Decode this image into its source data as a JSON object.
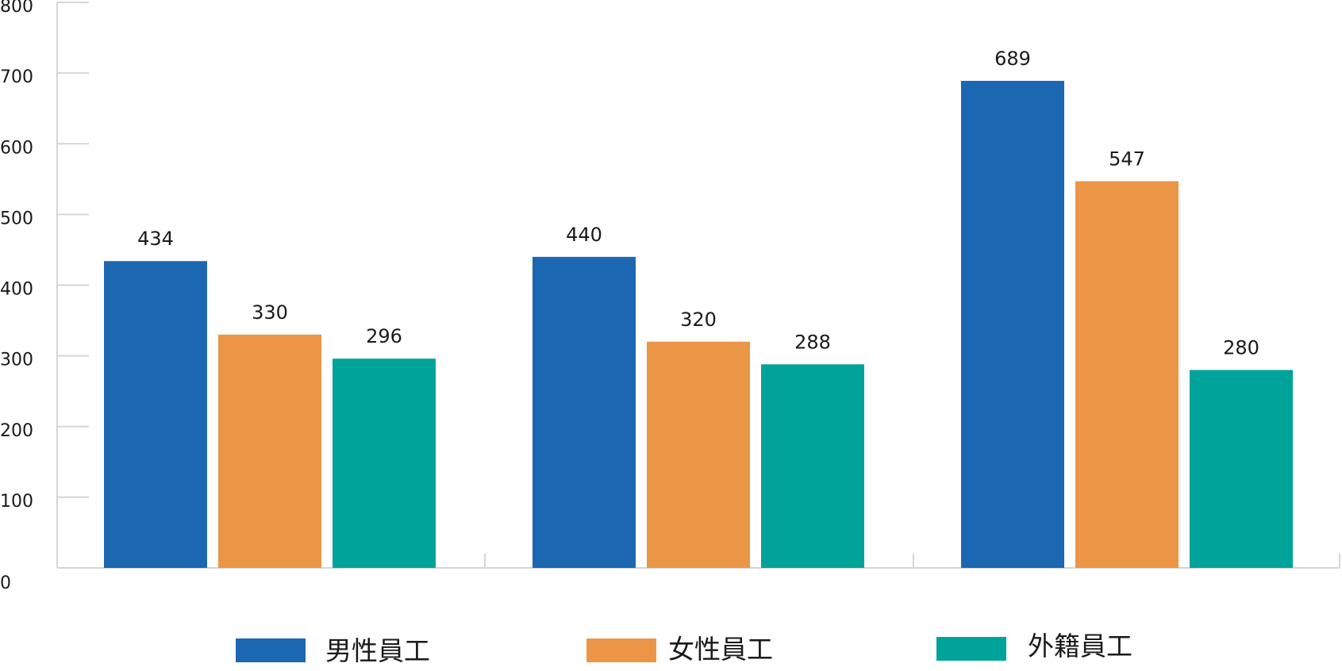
{
  "chart_data": {
    "type": "bar",
    "categories": [
      "",
      "",
      ""
    ],
    "series": [
      {
        "name": "男性員工",
        "color": "#1c67b2",
        "values": [
          434,
          440,
          689
        ]
      },
      {
        "name": "女性員工",
        "color": "#eb9546",
        "values": [
          330,
          320,
          547
        ]
      },
      {
        "name": "外籍員工",
        "color": "#00a39a",
        "values": [
          296,
          288,
          280
        ]
      }
    ],
    "title": "",
    "xlabel": "",
    "ylabel": "",
    "ylim": [
      0,
      800
    ],
    "yticks": [
      0,
      100,
      200,
      300,
      400,
      500,
      600,
      700,
      800
    ],
    "grid": false,
    "legend_position": "bottom",
    "data_labels": true
  }
}
